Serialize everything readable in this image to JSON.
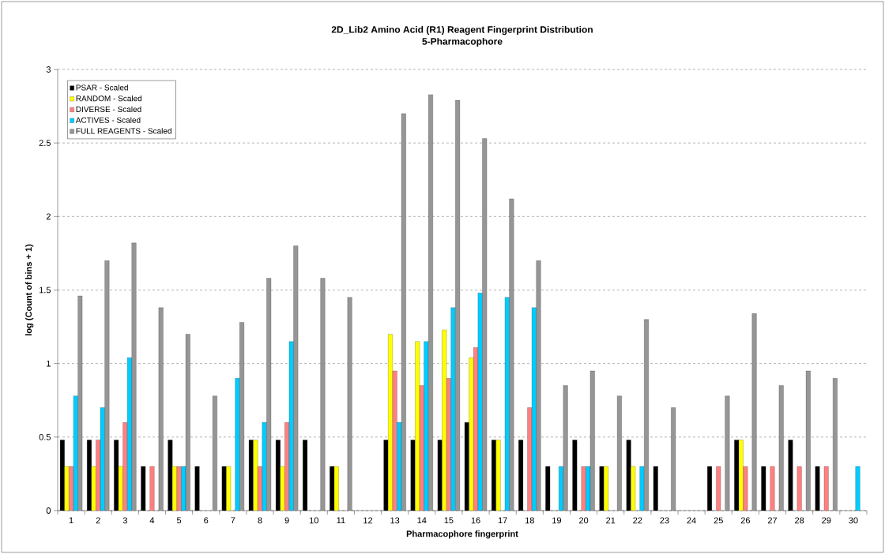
{
  "chart_data": {
    "type": "bar",
    "title": "2D_Lib2 Amino Acid (R1) Reagent Fingerprint Distribution",
    "subtitle": "5-Pharmacophore",
    "xlabel": "Pharmacophore fingerprint",
    "ylabel": "log (Count of bins + 1)",
    "categories": [
      "1",
      "2",
      "3",
      "4",
      "5",
      "6",
      "7",
      "8",
      "9",
      "10",
      "11",
      "12",
      "13",
      "14",
      "15",
      "16",
      "17",
      "18",
      "19",
      "20",
      "21",
      "22",
      "23",
      "24",
      "25",
      "26",
      "27",
      "28",
      "29",
      "30"
    ],
    "series": [
      {
        "name": "PSAR - Scaled",
        "color": "#000000",
        "values": [
          0.48,
          0.48,
          0.48,
          0.3,
          0.48,
          0.3,
          0.3,
          0.48,
          0.48,
          0.48,
          0.3,
          null,
          0.48,
          0.48,
          0.48,
          0.6,
          0.48,
          0.48,
          0.3,
          0.48,
          0.3,
          0.48,
          0.3,
          null,
          0.3,
          0.48,
          0.3,
          0.48,
          0.3,
          null
        ]
      },
      {
        "name": "RANDOM - Scaled",
        "color": "#ffff00",
        "values": [
          0.3,
          0.3,
          0.3,
          null,
          0.3,
          null,
          0.3,
          0.48,
          0.3,
          null,
          0.3,
          null,
          1.2,
          1.15,
          1.23,
          1.04,
          0.48,
          null,
          null,
          null,
          0.3,
          0.3,
          null,
          null,
          null,
          0.48,
          null,
          null,
          null,
          null
        ]
      },
      {
        "name": "DIVERSE - Scaled",
        "color": "#ff8080",
        "values": [
          0.3,
          0.48,
          0.6,
          0.3,
          0.3,
          null,
          null,
          0.3,
          0.6,
          null,
          null,
          null,
          0.95,
          0.85,
          0.9,
          1.11,
          null,
          0.7,
          null,
          0.3,
          null,
          null,
          null,
          null,
          0.3,
          0.3,
          0.3,
          0.3,
          0.3,
          null
        ]
      },
      {
        "name": "ACTIVES - Scaled",
        "color": "#00ccff",
        "values": [
          0.78,
          0.7,
          1.04,
          null,
          0.3,
          null,
          0.9,
          0.6,
          1.15,
          null,
          null,
          null,
          0.6,
          1.15,
          1.38,
          1.48,
          1.45,
          1.38,
          0.3,
          0.3,
          null,
          0.3,
          null,
          null,
          null,
          null,
          null,
          null,
          null,
          0.3
        ]
      },
      {
        "name": "FULL REAGENTS - Scaled",
        "color": "#969696",
        "values": [
          1.46,
          1.7,
          1.82,
          1.38,
          1.2,
          0.78,
          1.28,
          1.58,
          1.8,
          1.58,
          1.45,
          null,
          2.7,
          2.83,
          2.79,
          2.53,
          2.12,
          1.7,
          0.85,
          0.95,
          0.78,
          1.3,
          0.7,
          null,
          0.78,
          1.34,
          0.85,
          0.95,
          0.9,
          null
        ]
      }
    ],
    "ylim": [
      0,
      3
    ],
    "yticks": [
      0,
      0.5,
      1,
      1.5,
      2,
      2.5,
      3
    ],
    "grid": "y",
    "legend": "top left"
  }
}
